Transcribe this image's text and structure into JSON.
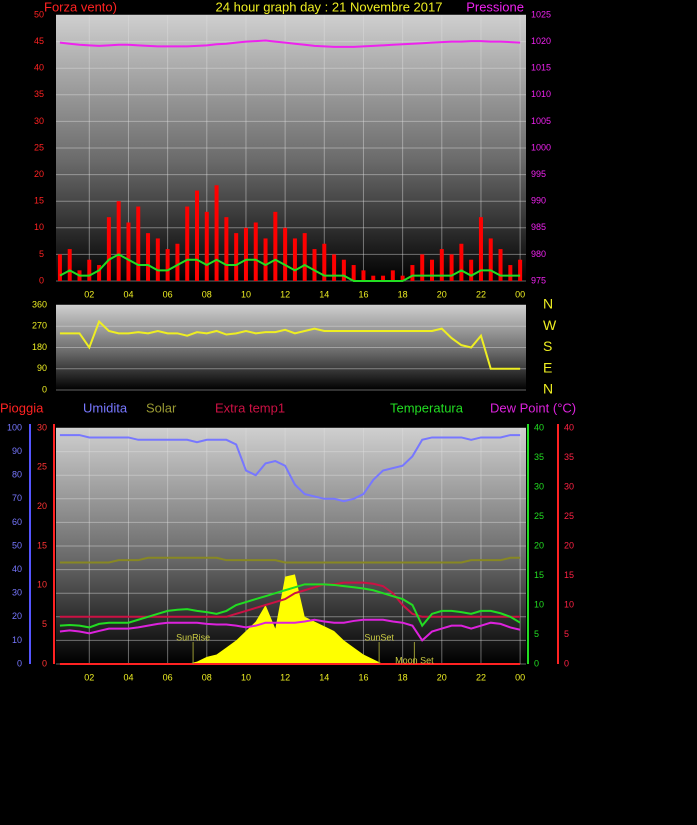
{
  "chart_data": [
    {
      "type": "bar",
      "title": "24 hour graph day : 21 Novembre 2017",
      "xlim": [
        0.3,
        24.3
      ],
      "xticks": [
        {
          "value": 2,
          "label": "02"
        },
        {
          "value": 4,
          "label": "04"
        },
        {
          "value": 6,
          "label": "06"
        },
        {
          "value": 8,
          "label": "08"
        },
        10,
        12,
        14,
        16,
        18,
        20,
        22,
        {
          "value": 24,
          "label": "00"
        }
      ],
      "ylim": [
        0,
        50
      ],
      "yticks": [
        0,
        5,
        10,
        15,
        20,
        25,
        30,
        35,
        40,
        45,
        50
      ],
      "y2lim": [
        975,
        1025
      ],
      "y2ticks": [
        975,
        980,
        985,
        990,
        995,
        1000,
        1005,
        1010,
        1015,
        1020,
        1025
      ],
      "grid": true,
      "x": [
        0.5,
        1,
        1.5,
        2,
        2.5,
        3,
        3.5,
        4,
        4.5,
        5,
        5.5,
        6,
        6.5,
        7,
        7.5,
        8,
        8.5,
        9,
        9.5,
        10,
        10.5,
        11,
        11.5,
        12,
        12.5,
        13,
        13.5,
        14,
        14.5,
        15,
        15.5,
        16,
        16.5,
        17,
        17.5,
        18,
        18.5,
        19,
        19.5,
        20,
        20.5,
        21,
        21.5,
        22,
        22.5,
        23,
        23.5,
        24
      ],
      "series": [
        {
          "name": "Forza vento)",
          "color": "#ff0000",
          "kind": "bar",
          "values": [
            5,
            6,
            2,
            4,
            3,
            12,
            15,
            11,
            14,
            9,
            8,
            6,
            7,
            14,
            17,
            13,
            18,
            12,
            9,
            10,
            11,
            8,
            13,
            10,
            8,
            9,
            6,
            7,
            5,
            4,
            3,
            2,
            1,
            1,
            2,
            1,
            3,
            5,
            4,
            6,
            5,
            7,
            4,
            12,
            8,
            6,
            3,
            4
          ]
        },
        {
          "color": "#22dd22",
          "kind": "line",
          "values": [
            1,
            2,
            1,
            1,
            2,
            4,
            5,
            4,
            3,
            3,
            2,
            2,
            3,
            4,
            4,
            3,
            4,
            3,
            3,
            4,
            4,
            3,
            4,
            3,
            2,
            3,
            2,
            1,
            1,
            1,
            0,
            0,
            0,
            0,
            0,
            0,
            1,
            1,
            1,
            1,
            1,
            2,
            1,
            2,
            2,
            1,
            1,
            1
          ]
        },
        {
          "name": "Pressione",
          "color": "#ee22ee",
          "kind": "line",
          "axis": "y2",
          "values": [
            1019.8,
            1019.6,
            1019.4,
            1019.3,
            1019.2,
            1019.3,
            1019.4,
            1019.4,
            1019.3,
            1019.2,
            1019.1,
            1019.1,
            1019.1,
            1019.1,
            1019.2,
            1019.3,
            1019.5,
            1019.6,
            1019.8,
            1020.0,
            1020.1,
            1020.2,
            1020.0,
            1019.8,
            1019.6,
            1019.4,
            1019.2,
            1019.1,
            1019.0,
            1019.0,
            1019.0,
            1019.1,
            1019.2,
            1019.3,
            1019.4,
            1019.5,
            1019.6,
            1019.7,
            1019.8,
            1019.9,
            1020.0,
            1020.0,
            1020.1,
            1020.1,
            1020.0,
            1020.0,
            1019.9,
            1019.8
          ]
        }
      ]
    },
    {
      "type": "line",
      "xlim": [
        0.3,
        24.3
      ],
      "ylim": [
        0,
        360
      ],
      "yticks": [
        0,
        90,
        180,
        270,
        360
      ],
      "y2lim": [
        0,
        360
      ],
      "y2ticks": [
        {
          "value": 360,
          "label": "N"
        },
        {
          "value": 270,
          "label": "W"
        },
        {
          "value": 180,
          "label": "S"
        },
        {
          "value": 90,
          "label": "E"
        },
        {
          "value": 0,
          "label": "N"
        }
      ],
      "grid": true,
      "x": [
        0.5,
        1,
        1.5,
        2,
        2.5,
        3,
        3.5,
        4,
        4.5,
        5,
        5.5,
        6,
        6.5,
        7,
        7.5,
        8,
        8.5,
        9,
        9.5,
        10,
        10.5,
        11,
        11.5,
        12,
        12.5,
        13,
        13.5,
        14,
        14.5,
        15,
        15.5,
        16,
        16.5,
        17,
        17.5,
        18,
        18.5,
        19,
        19.5,
        20,
        20.5,
        21,
        21.5,
        22,
        22.5,
        23,
        23.5,
        24
      ],
      "series": [
        {
          "color": "#eeee22",
          "kind": "line",
          "values": [
            240,
            240,
            240,
            180,
            290,
            250,
            240,
            240,
            245,
            240,
            250,
            240,
            240,
            230,
            245,
            240,
            250,
            235,
            240,
            250,
            240,
            245,
            245,
            255,
            240,
            250,
            260,
            250,
            250,
            250,
            250,
            250,
            250,
            250,
            250,
            250,
            250,
            250,
            250,
            260,
            220,
            190,
            180,
            230,
            90,
            90,
            90,
            90
          ]
        }
      ]
    },
    {
      "type": "line",
      "xlim": [
        0.3,
        24.3
      ],
      "xticks": [
        {
          "value": 2,
          "label": "02"
        },
        {
          "value": 4,
          "label": "04"
        },
        {
          "value": 6,
          "label": "06"
        },
        {
          "value": 8,
          "label": "08"
        },
        10,
        12,
        14,
        16,
        18,
        20,
        22,
        {
          "value": 24,
          "label": "00"
        }
      ],
      "ylim": [
        0,
        100
      ],
      "yticks": [
        0,
        10,
        20,
        30,
        40,
        50,
        60,
        70,
        80,
        90,
        100
      ],
      "y2lim": [
        0,
        40
      ],
      "y2ticks": [
        0,
        5,
        10,
        15,
        20,
        25,
        30,
        35,
        40
      ],
      "y3lim": [
        0,
        30
      ],
      "y3ticks": [
        0,
        5,
        10,
        15,
        20,
        25,
        30
      ],
      "y4lim": [
        0,
        40
      ],
      "y4ticks": [
        0,
        5,
        10,
        15,
        20,
        25,
        30,
        35,
        40
      ],
      "grid": true,
      "x": [
        0.5,
        1,
        1.5,
        2,
        2.5,
        3,
        3.5,
        4,
        4.5,
        5,
        5.5,
        6,
        6.5,
        7,
        7.5,
        8,
        8.5,
        9,
        9.5,
        10,
        10.5,
        11,
        11.5,
        12,
        12.5,
        13,
        13.5,
        14,
        14.5,
        15,
        15.5,
        16,
        16.5,
        17,
        17.5,
        18,
        18.5,
        19,
        19.5,
        20,
        20.5,
        21,
        21.5,
        22,
        22.5,
        23,
        23.5,
        24
      ],
      "series": [
        {
          "name": "Solar",
          "color": "#ffff00",
          "kind": "area",
          "axis": "y",
          "values": [
            0,
            0,
            0,
            0,
            0,
            0,
            0,
            0,
            0,
            0,
            0,
            0,
            0,
            0,
            1,
            3,
            4,
            7,
            10,
            14,
            18,
            25,
            15,
            37,
            38,
            20,
            18,
            16,
            14,
            10,
            7,
            4,
            2,
            0,
            0,
            0,
            0,
            0,
            0,
            0,
            0,
            0,
            0,
            0,
            0,
            0,
            0,
            0
          ]
        },
        {
          "color": "#888822",
          "kind": "line",
          "axis": "y",
          "values": [
            43,
            43,
            43,
            43,
            43,
            43,
            44,
            44,
            44,
            45,
            45,
            45,
            45,
            45,
            45,
            45,
            45,
            44,
            44,
            44,
            44,
            44,
            44,
            43,
            43,
            43,
            43,
            43,
            43,
            43,
            43,
            43,
            43,
            43,
            43,
            43,
            43,
            43,
            43,
            43,
            43,
            43,
            44,
            44,
            44,
            44,
            45,
            45
          ]
        },
        {
          "name": "Umidita",
          "color": "#7777ff",
          "kind": "line",
          "axis": "y",
          "values": [
            97,
            97,
            97,
            96,
            96,
            96,
            96,
            96,
            95,
            95,
            95,
            95,
            95,
            95,
            94,
            95,
            95,
            95,
            93,
            82,
            80,
            85,
            86,
            84,
            76,
            72,
            71,
            70,
            70,
            69,
            70,
            72,
            78,
            82,
            83,
            84,
            88,
            95,
            96,
            96,
            96,
            96,
            95,
            96,
            96,
            96,
            97,
            97
          ]
        },
        {
          "name": "Extra temp1",
          "color": "#cc1144",
          "kind": "line",
          "axis": "y2",
          "values": [
            8,
            8,
            8,
            8,
            8,
            8,
            8,
            8,
            8,
            8,
            8,
            8,
            8,
            8,
            8,
            8,
            8,
            8,
            8.5,
            9,
            9.5,
            10,
            10.5,
            11,
            12,
            12.5,
            13,
            13.5,
            13.5,
            13.8,
            13.8,
            13.8,
            13.6,
            13.2,
            12,
            10,
            8.5,
            8,
            8,
            8,
            8,
            8,
            8,
            8,
            8,
            8,
            8,
            8
          ]
        },
        {
          "name": "Temperatura",
          "color": "#22dd22",
          "kind": "line",
          "axis": "y2",
          "values": [
            6.5,
            6.6,
            6.5,
            6.2,
            6.8,
            7,
            7,
            7,
            7.5,
            8,
            8.5,
            9,
            9.2,
            9.3,
            9,
            8.8,
            8.5,
            9,
            10,
            10.5,
            11,
            11.5,
            12,
            12.5,
            13,
            13.5,
            13.5,
            13.5,
            13.4,
            13.2,
            13,
            12.8,
            12.5,
            12,
            11.5,
            11,
            10,
            6.5,
            8.5,
            9,
            9,
            8.8,
            8.5,
            9,
            9,
            8.6,
            8,
            7
          ]
        },
        {
          "name": "Dew Point (°C)",
          "color": "#dd22dd",
          "kind": "line",
          "axis": "y4",
          "values": [
            5.5,
            5.7,
            5.5,
            5.2,
            5.6,
            6,
            6,
            6,
            6.2,
            6.5,
            6.8,
            7,
            7,
            7,
            7,
            6.8,
            6.7,
            6.7,
            6.5,
            6.2,
            6.5,
            7,
            7,
            7,
            7,
            7.2,
            7.5,
            7.2,
            7,
            7,
            7.3,
            7.5,
            7.5,
            7.5,
            7.2,
            7,
            6.5,
            4,
            5.5,
            6,
            6.5,
            6.5,
            6,
            6.5,
            7,
            6.8,
            6.2,
            5.8
          ]
        },
        {
          "name": "Pioggia",
          "color": "#ff2222",
          "kind": "line",
          "axis": "y3",
          "values": [
            0,
            0,
            0,
            0,
            0,
            0,
            0,
            0,
            0,
            0,
            0,
            0,
            0,
            0,
            0,
            0,
            0,
            0,
            0,
            0,
            0,
            0,
            0,
            0,
            0,
            0,
            0,
            0,
            0,
            0,
            0,
            0,
            0,
            0,
            0,
            0,
            0,
            0,
            0,
            0,
            0,
            0,
            0,
            0,
            0,
            0,
            0,
            0
          ]
        }
      ],
      "annotations": [
        {
          "text": "SunRise",
          "x": 7.3
        },
        {
          "text": "SunSet",
          "x": 16.8
        },
        {
          "text": "Moon Set",
          "x": 18.6
        }
      ]
    }
  ]
}
